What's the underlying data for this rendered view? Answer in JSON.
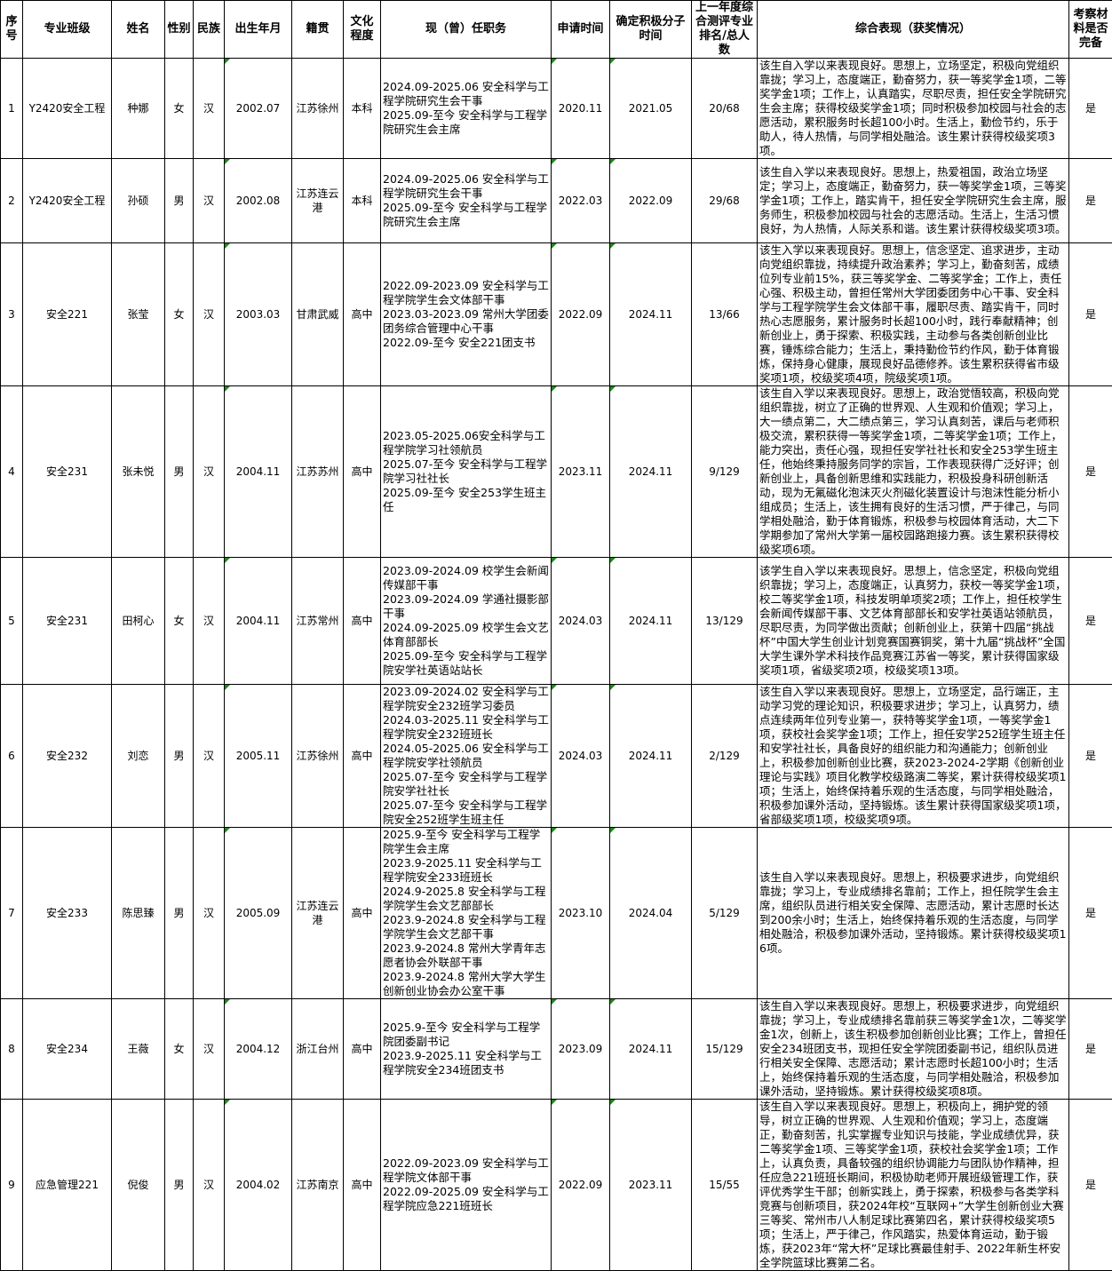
{
  "headers": [
    "序号",
    "专业班级",
    "姓名",
    "性别",
    "民族",
    "出生年月",
    "籍贯",
    "文化程度",
    "现（曾）任职务",
    "申请时间",
    "确定积极分子时间",
    "上一年度综合测评专业排名/总人数",
    "综合表现（获奖情况）",
    "考察材料是否完备"
  ],
  "rows": [
    {
      "no": "1",
      "class": "Y2420安全工程",
      "name": "种娜",
      "gender": "女",
      "ethnicity": "汉",
      "birth": "2002.07",
      "origin": "江苏徐州",
      "education": "本科",
      "positions": "2024.09-2025.06 安全科学与工程学院研究生会干事\n2025.09-至今 安全科学与工程学院研究生会主席",
      "apply": "2020.11",
      "confirm": "2021.05",
      "rank": "20/68",
      "performance": "该生自入学以来表现良好。思想上，立场坚定，积极向党组织靠拢；学习上，态度端正，勤奋努力，获一等奖学金1项，二等奖学金1项；工作上，认真踏实，尽职尽责，担任安全学院研究生会主席；获得校级奖学金1项；同时积极参加校园与社会的志愿活动，累积服务时长超100小时。生活上，勤俭节约，乐于助人，待人热情，与同学相处融洽。该生累计获得校级奖项3项。",
      "complete": "是"
    },
    {
      "no": "2",
      "class": "Y2420安全工程",
      "name": "孙硕",
      "gender": "男",
      "ethnicity": "汉",
      "birth": "2002.08",
      "origin": "江苏连云港",
      "education": "本科",
      "positions": "2024.09-2025.06 安全科学与工程学院研究生会干事\n2025.09-至今 安全科学与工程学院研究生会主席",
      "apply": "2022.03",
      "confirm": "2022.09",
      "rank": "29/68",
      "performance": "该生自入学以来表现良好。思想上，热爱祖国，政治立场坚定；学习上，态度端正，勤奋努力，获一等奖学金1项，三等奖学金1项；工作上，踏实肯干，担任安全学院研究生会主席，服务师生，积极参加校园与社会的志愿活动。生活上，生活习惯良好，为人热情，人际关系和谐。该生累计获得校级奖项3项。",
      "complete": "是"
    },
    {
      "no": "3",
      "class": "安全221",
      "name": "张莹",
      "gender": "女",
      "ethnicity": "汉",
      "birth": "2003.03",
      "origin": "甘肃武威",
      "education": "高中",
      "positions": "2022.09-2023.09 安全科学与工程学院学生会文体部干事\n2023.03-2023.09 常州大学团委团务综合管理中心干事\n2022.09-至今 安全221团支书",
      "apply": "2022.09",
      "confirm": "2024.11",
      "rank": "13/66",
      "performance": "该生入学以来表现良好。思想上，信念坚定、追求进步，主动向党组织靠拢，持续提升政治素养；学习上，勤奋刻苦，成绩位列专业前15%，获三等奖学金、二等奖学金；工作上，责任心强、积极主动，曾担任常州大学团委团务中心干事、安全科学与工程学院学生会文体部干事，履职尽责、踏实肯干，同时热心志愿服务，累计服务时长超100小时，践行奉献精神；创新创业上，勇于探索、积极实践，主动参与各类创新创业比赛，锤炼综合能力；生活上，秉持勤俭节约作风，勤于体育锻炼，保持身心健康，展现良好品德修养。该生累积获得省市级奖项1项，校级奖项4项，院级奖项1项。",
      "complete": "是"
    },
    {
      "no": "4",
      "class": "安全231",
      "name": "张未悦",
      "gender": "男",
      "ethnicity": "汉",
      "birth": "2004.11",
      "origin": "江苏苏州",
      "education": "高中",
      "positions": "2023.05-2025.06安全科学与工程学院学习社领航员\n2025.07-至今 安全科学与工程学院学习社社长\n2025.09-至今 安全253学生班主任",
      "apply": "2023.11",
      "confirm": "2024.11",
      "rank": "9/129",
      "performance": "该生自入学以来表现良好。思想上，政治觉悟较高，积极向党组织靠拢，树立了正确的世界观、人生观和价值观；学习上，大一绩点第二，大二绩点第三，学习认真刻苦，课后与老师积极交流，累积获得一等奖学金1项，二等奖学金1项；工作上，能力突出，责任心强，现担任安学社社长和安全253学生班主任，他始终秉持服务同学的宗旨，工作表现获得广泛好评；创新创业上，具备创新思维和实践能力，积极投身科研创新活动，现为无氟磁化泡沫灭火剂磁化装置设计与泡沫性能分析小组成员；生活上，该生拥有良好的生活习惯，严于律己，与同学相处融洽，勤于体育锻炼，积极参与校园体育活动，大二下学期参加了常州大学第一届校园路跑接力赛。该生累积获得校级奖项6项。",
      "complete": "是"
    },
    {
      "no": "5",
      "class": "安全231",
      "name": "田柯心",
      "gender": "女",
      "ethnicity": "汉",
      "birth": "2004.11",
      "origin": "江苏常州",
      "education": "高中",
      "positions": "2023.09-2024.09 校学生会新闻传媒部干事\n2023.09-2024.09 学通社摄影部干事\n2024.09-2025.09 校学生会文艺体育部部长\n2025.09-至今 安全科学与工程学院安学社英语站站长",
      "apply": "2024.03",
      "confirm": "2024.11",
      "rank": "13/129",
      "performance": "该学生自入学以来表现良好。思想上，信念坚定，积极向党组织靠拢；学习上，态度端正，认真努力，获校一等奖学金1项，校二等奖学金1项，科技发明单项奖2项；工作上，担任校学生会新闻传媒部干事、文艺体育部部长和安学社英语站领航员，尽职尽责，为同学做出贡献；创新创业上，获第十四届“挑战杯”中国大学生创业计划竞赛国赛铜奖，第十九届“挑战杯”全国大学生课外学术科技作品竞赛江苏省一等奖，累计获得国家级奖项1项，省级奖项2项，校级奖项13项。",
      "complete": "是"
    },
    {
      "no": "6",
      "class": "安全232",
      "name": "刘恋",
      "gender": "男",
      "ethnicity": "汉",
      "birth": "2005.11",
      "origin": "江苏徐州",
      "education": "高中",
      "positions": "2023.09-2024.02 安全科学与工程学院安全232班学习委员\n2024.03-2025.11 安全科学与工程学院安全232班班长\n2024.05-2025.06 安全科学与工程学院安学社领航员\n2025.07-至今 安全科学与工程学院安学社社长\n2025.07-至今 安全科学与工程学院安全252班学生班主任",
      "apply": "2024.03",
      "confirm": "2024.11",
      "rank": "2/129",
      "performance": "该生自入学以来表现良好。思想上，立场坚定，品行端正，主动学习党的理论知识，积极要求进步；学习上，认真努力，绩点连续两年位列专业第一，获特等奖学金1项，一等奖学金1项，获校社会奖学金1项；工作上，担任安学252班学生班主任和安学社社长，具备良好的组织能力和沟通能力；创新创业上，积极参加创新创业比赛，获2023-2024-2学期《创新创业理论与实践》项目化教学校级路演二等奖，累计获得校级奖项1项；生活上，始终保持着乐观的生活态度，与同学相处融洽，积极参加课外活动，坚持锻炼。该生累计获得国家级奖项1项，省部级奖项1项，校级奖项9项。",
      "complete": "是"
    },
    {
      "no": "7",
      "class": "安全233",
      "name": "陈思臻",
      "gender": "男",
      "ethnicity": "汉",
      "birth": "2005.09",
      "origin": "江苏连云港",
      "education": "高中",
      "positions": "2025.9-至今 安全科学与工程学院学生会主席\n2023.9-2025.11 安全科学与工程学院安全233班班长\n2024.9-2025.8 安全科学与工程学院学生会文艺部部长\n2023.9-2024.8 安全科学与工程学院学生会文艺部干事\n2023.9-2024.8 常州大学青年志愿者协会外联部干事\n2023.9-2024.8 常州大学大学生创新创业协会办公室干事",
      "apply": "2023.10",
      "confirm": "2024.04",
      "rank": "5/129",
      "performance": "该生自入学以来表现良好。思想上，积极要求进步，向党组织靠拢；学习上，专业成绩排名靠前；工作上，担任院学生会主席，组织队员进行相关安全保障、志愿活动，累计志愿时长达到200余小时；生活上，始终保持着乐观的生活态度，与同学相处融洽，积极参加课外活动，坚持锻炼。累计获得校级奖项16项。",
      "complete": "是"
    },
    {
      "no": "8",
      "class": "安全234",
      "name": "王薇",
      "gender": "女",
      "ethnicity": "汉",
      "birth": "2004.12",
      "origin": "浙江台州",
      "education": "高中",
      "positions": "2025.9-至今 安全科学与工程学院团委副书记\n2023.9-2025.11 安全科学与工程学院安全234班团支书",
      "apply": "2023.09",
      "confirm": "2024.11",
      "rank": "15/129",
      "performance": "该生自入学以来表现良好。思想上，积极要求进步，向党组织靠拢；学习上，专业成绩排名靠前获三等奖学金1次，二等奖学金1次，创新上，该生积极参加创新创业比赛；工作上，曾担任安全234班团支书，现担任安全学院团委副书记，组织队员进行相关安全保障、志愿活动；累计志愿时长超100小时；生活上，始终保持着乐观的生活态度，与同学相处融洽，积极参加课外活动，坚持锻炼。累计获得校级奖项8项。",
      "complete": "是"
    },
    {
      "no": "9",
      "class": "应急管理221",
      "name": "倪俊",
      "gender": "男",
      "ethnicity": "汉",
      "birth": "2004.02",
      "origin": "江苏南京",
      "education": "高中",
      "positions": "2022.09-2023.09 安全科学与工程学院文体部干事\n2022.09-2025.09 安全科学与工程学院应急221班班长",
      "apply": "2022.09",
      "confirm": "2023.11",
      "rank": "15/55",
      "performance": "该生自入学以来表现良好。思想上，积极向上，拥护党的领导，树立正确的世界观、人生观和价值观；学习上，态度端正，勤奋刻苦，扎实掌握专业知识与技能，学业成绩优异，获二等奖学金1项、三等奖学金1项，获校社会奖学金1项；工作上，认真负责，具备较强的组织协调能力与团队协作精神，担任应急221班班长期间，积极协助老师开展班级管理工作，获评优秀学生干部；创新实践上，勇于探索，积极参与各类学科竞赛与创新项目，获2024年校“互联网+”大学生创新创业大赛三等奖、常州市八人制足球比赛第四名，累计获得校级奖项5项；生活上，严于律己，作风踏实，热爱体育运动，勤于锻炼，获2023年“常大杯”足球比赛最佳射手、2022年新生杯安全学院篮球比赛第二名。",
      "complete": "是"
    }
  ]
}
